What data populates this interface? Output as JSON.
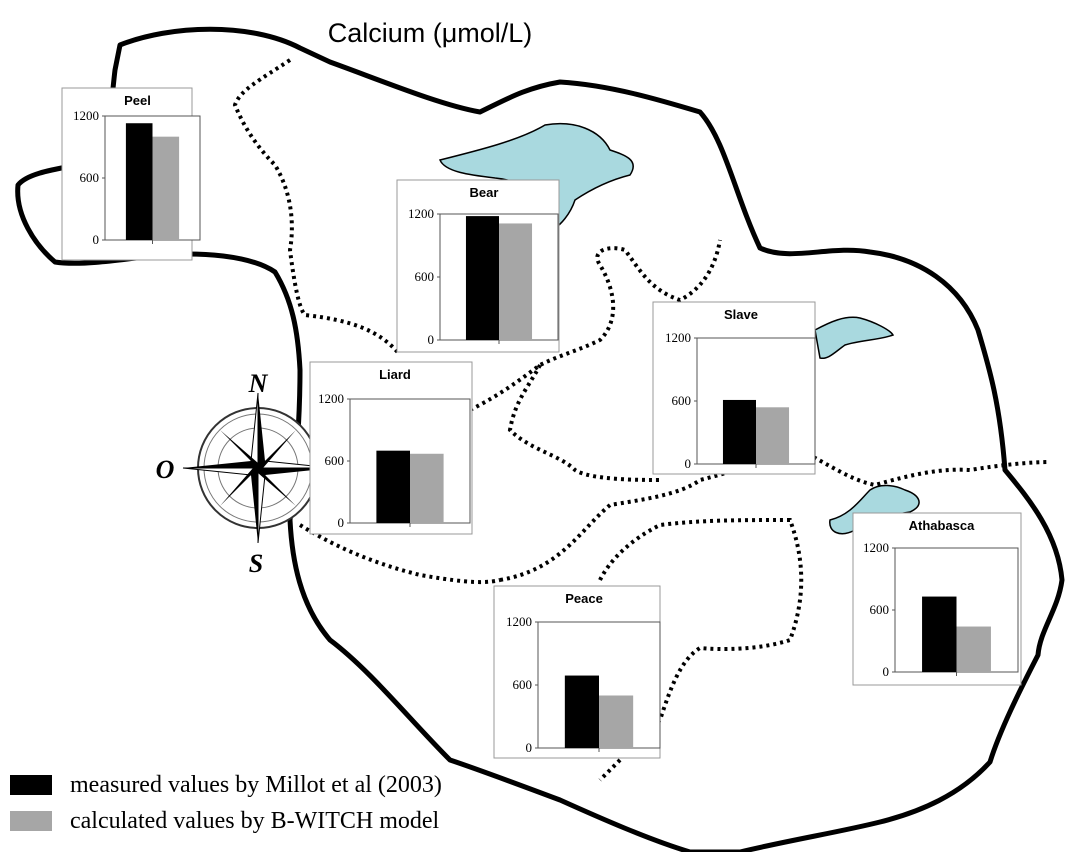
{
  "title": "Calcium (μmol/L)",
  "compass": {
    "north": "N",
    "west": "O",
    "south": "S"
  },
  "legend": [
    {
      "name": "measured values by Millot et al (2003)",
      "color": "#000000"
    },
    {
      "name": "calculated values by B-WITCH model",
      "color": "#a6a6a6"
    }
  ],
  "chart_data": [
    {
      "type": "bar",
      "title": "Peel",
      "values": [
        1130,
        1000
      ],
      "ylim": [
        0,
        1200
      ],
      "yticks": [
        0,
        600,
        1200
      ]
    },
    {
      "type": "bar",
      "title": "Bear",
      "values": [
        1180,
        1110
      ],
      "ylim": [
        0,
        1200
      ],
      "yticks": [
        0,
        600,
        1200
      ]
    },
    {
      "type": "bar",
      "title": "Slave",
      "values": [
        610,
        540
      ],
      "ylim": [
        0,
        1200
      ],
      "yticks": [
        0,
        600,
        1200
      ]
    },
    {
      "type": "bar",
      "title": "Liard",
      "values": [
        700,
        670
      ],
      "ylim": [
        0,
        1200
      ],
      "yticks": [
        0,
        600,
        1200
      ]
    },
    {
      "type": "bar",
      "title": "Athabasca",
      "values": [
        730,
        440
      ],
      "ylim": [
        0,
        1200
      ],
      "yticks": [
        0,
        600,
        1200
      ]
    },
    {
      "type": "bar",
      "title": "Peace",
      "values": [
        690,
        500
      ],
      "ylim": [
        0,
        1200
      ],
      "yticks": [
        0,
        600,
        1200
      ]
    }
  ]
}
